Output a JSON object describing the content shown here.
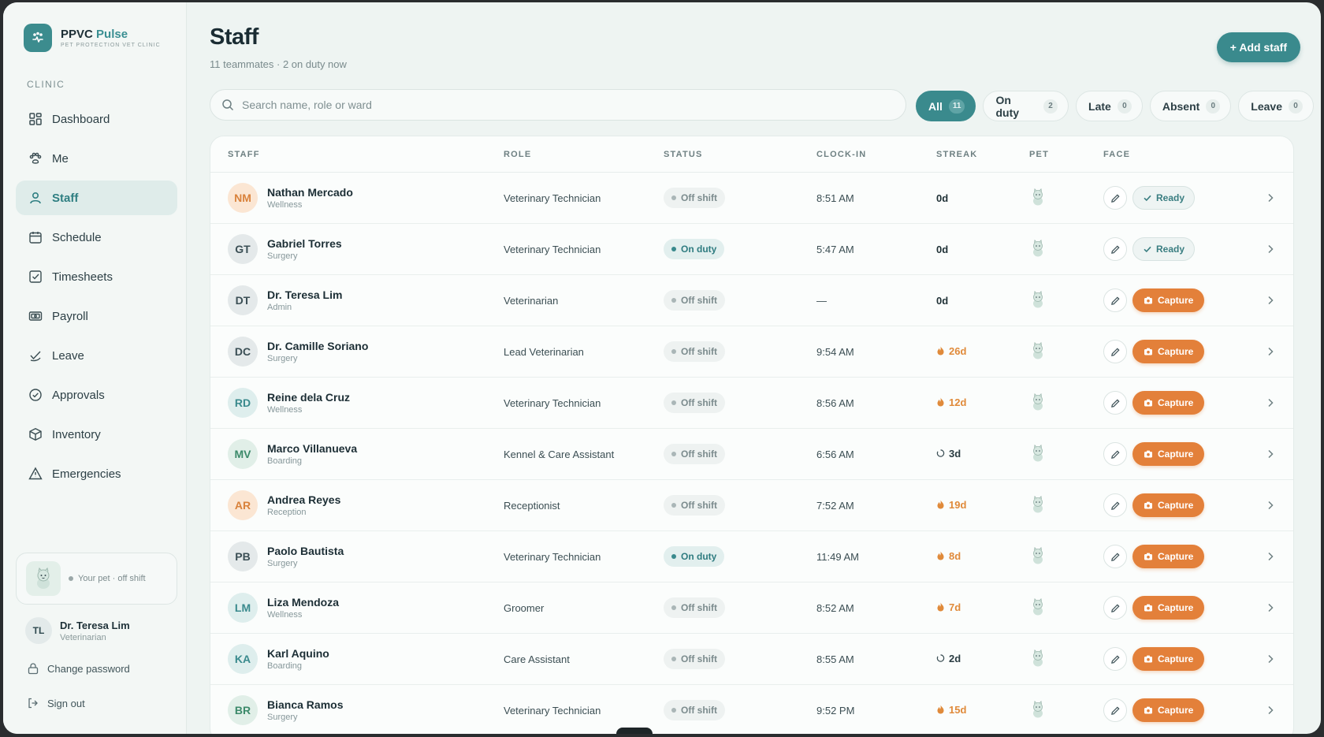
{
  "brand": {
    "name": "PPVC",
    "accent": "Pulse",
    "subtitle": "PET PROTECTION VET CLINIC"
  },
  "sidebar": {
    "section": "CLINIC",
    "items": [
      {
        "label": "Dashboard",
        "icon": "grid-icon"
      },
      {
        "label": "Me",
        "icon": "paw-icon"
      },
      {
        "label": "Staff",
        "icon": "person-icon",
        "active": true
      },
      {
        "label": "Schedule",
        "icon": "calendar-icon"
      },
      {
        "label": "Timesheets",
        "icon": "checklist-icon"
      },
      {
        "label": "Payroll",
        "icon": "banknote-icon"
      },
      {
        "label": "Leave",
        "icon": "leaf-check-icon"
      },
      {
        "label": "Approvals",
        "icon": "check-circle-icon"
      },
      {
        "label": "Inventory",
        "icon": "box-icon"
      },
      {
        "label": "Emergencies",
        "icon": "warning-icon"
      }
    ],
    "pet_status": "Your pet · off shift",
    "user": {
      "initials": "TL",
      "name": "Dr. Teresa Lim",
      "role": "Veterinarian"
    },
    "change_password": "Change password",
    "sign_out": "Sign out"
  },
  "header": {
    "title": "Staff",
    "subtitle": "11 teammates · 2 on duty now",
    "add_button": "+ Add staff"
  },
  "search": {
    "placeholder": "Search name, role or ward"
  },
  "filters": [
    {
      "label": "All",
      "count": "11",
      "active": true
    },
    {
      "label": "On duty",
      "count": "2"
    },
    {
      "label": "Late",
      "count": "0"
    },
    {
      "label": "Absent",
      "count": "0"
    },
    {
      "label": "Leave",
      "count": "0"
    }
  ],
  "columns": [
    "STAFF",
    "ROLE",
    "STATUS",
    "CLOCK-IN",
    "STREAK",
    "PET",
    "FACE"
  ],
  "colors": {
    "accent": "#3a8a8d",
    "capture": "#e3803a",
    "streak_hot": "#e08a3a"
  },
  "rows": [
    {
      "initials": "NM",
      "name": "Nathan Mercado",
      "ward": "Wellness",
      "role": "Veterinary Technician",
      "status": "Off shift",
      "clock_in": "8:51 AM",
      "streak": "0d",
      "streak_type": "zero",
      "face": "Ready",
      "avatar_bg": "#fbe6d3",
      "avatar_fg": "#d9823b"
    },
    {
      "initials": "GT",
      "name": "Gabriel Torres",
      "ward": "Surgery",
      "role": "Veterinary Technician",
      "status": "On duty",
      "clock_in": "5:47 AM",
      "streak": "0d",
      "streak_type": "zero",
      "face": "Ready",
      "avatar_bg": "#e4e9ea",
      "avatar_fg": "#3b4f55"
    },
    {
      "initials": "DT",
      "name": "Dr. Teresa Lim",
      "ward": "Admin",
      "role": "Veterinarian",
      "status": "Off shift",
      "clock_in": "—",
      "streak": "0d",
      "streak_type": "zero",
      "face": "Capture",
      "avatar_bg": "#e4e9ea",
      "avatar_fg": "#3b4f55"
    },
    {
      "initials": "DC",
      "name": "Dr. Camille Soriano",
      "ward": "Surgery",
      "role": "Lead Veterinarian",
      "status": "Off shift",
      "clock_in": "9:54 AM",
      "streak": "26d",
      "streak_type": "hot",
      "face": "Capture",
      "avatar_bg": "#e4e9ea",
      "avatar_fg": "#3b4f55"
    },
    {
      "initials": "RD",
      "name": "Reine dela Cruz",
      "ward": "Wellness",
      "role": "Veterinary Technician",
      "status": "Off shift",
      "clock_in": "8:56 AM",
      "streak": "12d",
      "streak_type": "hot",
      "face": "Capture",
      "avatar_bg": "#deeeed",
      "avatar_fg": "#3a8a8d"
    },
    {
      "initials": "MV",
      "name": "Marco Villanueva",
      "ward": "Boarding",
      "role": "Kennel & Care Assistant",
      "status": "Off shift",
      "clock_in": "6:56 AM",
      "streak": "3d",
      "streak_type": "cool",
      "face": "Capture",
      "avatar_bg": "#e1efe8",
      "avatar_fg": "#3c8a6a"
    },
    {
      "initials": "AR",
      "name": "Andrea Reyes",
      "ward": "Reception",
      "role": "Receptionist",
      "status": "Off shift",
      "clock_in": "7:52 AM",
      "streak": "19d",
      "streak_type": "hot",
      "face": "Capture",
      "avatar_bg": "#fbe6d3",
      "avatar_fg": "#d9823b"
    },
    {
      "initials": "PB",
      "name": "Paolo Bautista",
      "ward": "Surgery",
      "role": "Veterinary Technician",
      "status": "On duty",
      "clock_in": "11:49 AM",
      "streak": "8d",
      "streak_type": "hot",
      "face": "Capture",
      "avatar_bg": "#e4e9ea",
      "avatar_fg": "#3b4f55"
    },
    {
      "initials": "LM",
      "name": "Liza Mendoza",
      "ward": "Wellness",
      "role": "Groomer",
      "status": "Off shift",
      "clock_in": "8:52 AM",
      "streak": "7d",
      "streak_type": "hot",
      "face": "Capture",
      "avatar_bg": "#deeeed",
      "avatar_fg": "#3a8a8d"
    },
    {
      "initials": "KA",
      "name": "Karl Aquino",
      "ward": "Boarding",
      "role": "Care Assistant",
      "status": "Off shift",
      "clock_in": "8:55 AM",
      "streak": "2d",
      "streak_type": "cool",
      "face": "Capture",
      "avatar_bg": "#deeeed",
      "avatar_fg": "#3a8a8d"
    },
    {
      "initials": "BR",
      "name": "Bianca Ramos",
      "ward": "Surgery",
      "role": "Veterinary Technician",
      "status": "Off shift",
      "clock_in": "9:52 PM",
      "streak": "15d",
      "streak_type": "hot",
      "face": "Capture",
      "avatar_bg": "#e1efe8",
      "avatar_fg": "#3c8a6a"
    }
  ]
}
